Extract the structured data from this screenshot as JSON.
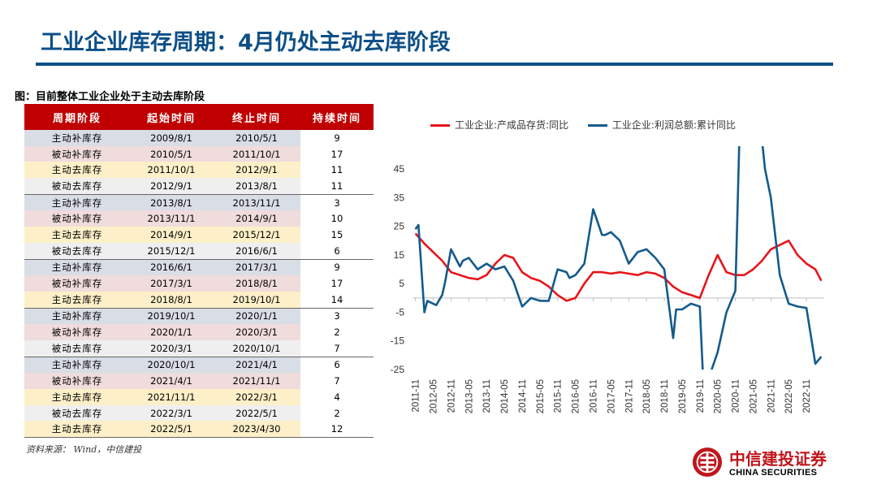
{
  "header": {
    "title": "工业企业库存周期：4月仍处主动去库阶段"
  },
  "figure_caption": "图：目前整体工业企业处于主动去库阶段",
  "table": {
    "headers": [
      "周期阶段",
      "起始时间",
      "终止时间",
      "持续时间"
    ],
    "rows": [
      {
        "stage": "主动补库存",
        "start": "2009/8/1",
        "end": "2010/5/1",
        "duration": "9"
      },
      {
        "stage": "被动补库存",
        "start": "2010/5/1",
        "end": "2011/10/1",
        "duration": "17"
      },
      {
        "stage": "主动去库存",
        "start": "2011/10/1",
        "end": "2012/9/1",
        "duration": "11"
      },
      {
        "stage": "被动去库存",
        "start": "2012/9/1",
        "end": "2013/8/1",
        "duration": "11"
      },
      {
        "stage": "主动补库存",
        "start": "2013/8/1",
        "end": "2013/11/1",
        "duration": "3"
      },
      {
        "stage": "被动补库存",
        "start": "2013/11/1",
        "end": "2014/9/1",
        "duration": "10"
      },
      {
        "stage": "主动去库存",
        "start": "2014/9/1",
        "end": "2015/12/1",
        "duration": "15"
      },
      {
        "stage": "被动去库存",
        "start": "2015/12/1",
        "end": "2016/6/1",
        "duration": "6"
      },
      {
        "stage": "主动补库存",
        "start": "2016/6/1",
        "end": "2017/3/1",
        "duration": "9"
      },
      {
        "stage": "被动补库存",
        "start": "2017/3/1",
        "end": "2018/8/1",
        "duration": "17"
      },
      {
        "stage": "主动去库存",
        "start": "2018/8/1",
        "end": "2019/10/1",
        "duration": "14"
      },
      {
        "stage": "主动补库存",
        "start": "2019/10/1",
        "end": "2020/1/1",
        "duration": "3"
      },
      {
        "stage": "被动补库存",
        "start": "2020/1/1",
        "end": "2020/3/1",
        "duration": "2"
      },
      {
        "stage": "被动去库存",
        "start": "2020/3/1",
        "end": "2020/10/1",
        "duration": "7"
      },
      {
        "stage": "主动补库存",
        "start": "2020/10/1",
        "end": "2021/4/1",
        "duration": "6"
      },
      {
        "stage": "被动补库存",
        "start": "2021/4/1",
        "end": "2021/11/1",
        "duration": "7"
      },
      {
        "stage": "主动去库存",
        "start": "2021/11/1",
        "end": "2022/3/1",
        "duration": "4"
      },
      {
        "stage": "被动去库存",
        "start": "2022/3/1",
        "end": "2022/5/1",
        "duration": "2"
      },
      {
        "stage": "主动去库存",
        "start": "2022/5/1",
        "end": "2023/4/30",
        "duration": "12"
      }
    ]
  },
  "source": "资料来源： Wind，中信建投",
  "logo": {
    "name_cn": "中信建投证券",
    "name_en": "CHINA SECURITIES"
  },
  "colors": {
    "title_blue": "#0d4f87",
    "header_red": "#c00000",
    "series_red": "#e8141b",
    "series_blue": "#145a8c"
  },
  "chart_data": {
    "type": "line",
    "series": [
      {
        "name": "工业企业:产成品存货:同比",
        "color": "#e8141b",
        "x": [
          "2011-11",
          "2012-02",
          "2012-05",
          "2012-08",
          "2012-11",
          "2013-02",
          "2013-05",
          "2013-08",
          "2013-11",
          "2014-02",
          "2014-05",
          "2014-08",
          "2014-11",
          "2015-02",
          "2015-05",
          "2015-08",
          "2015-11",
          "2016-02",
          "2016-05",
          "2016-08",
          "2016-11",
          "2017-02",
          "2017-05",
          "2017-08",
          "2017-11",
          "2018-02",
          "2018-05",
          "2018-08",
          "2018-11",
          "2019-02",
          "2019-05",
          "2019-08",
          "2019-11",
          "2020-02",
          "2020-05",
          "2020-08",
          "2020-11",
          "2021-02",
          "2021-05",
          "2021-08",
          "2021-11",
          "2022-02",
          "2022-05",
          "2022-08",
          "2022-11",
          "2023-02",
          "2023-04"
        ],
        "values": [
          22.5,
          19,
          16,
          13,
          9,
          8,
          7,
          6.5,
          8,
          12,
          15,
          14,
          9,
          7,
          6,
          4,
          1,
          -1,
          0,
          5,
          9,
          9,
          8.5,
          9,
          8.5,
          8,
          9,
          8.5,
          7,
          4,
          2,
          1,
          0,
          8,
          15,
          9,
          8,
          8,
          10,
          13,
          17,
          18.5,
          20,
          15,
          12,
          10,
          6
        ]
      },
      {
        "name": "工业企业:利润总额:累计同比",
        "color": "#145a8c",
        "x": [
          "2011-11",
          "2011-12",
          "2012-02",
          "2012-03",
          "2012-05",
          "2012-06",
          "2012-08",
          "2012-09",
          "2012-11",
          "2013-02",
          "2013-03",
          "2013-05",
          "2013-08",
          "2013-11",
          "2014-02",
          "2014-05",
          "2014-08",
          "2014-11",
          "2015-02",
          "2015-05",
          "2015-08",
          "2015-11",
          "2016-02",
          "2016-03",
          "2016-05",
          "2016-08",
          "2016-11",
          "2017-02",
          "2017-03",
          "2017-05",
          "2017-08",
          "2017-11",
          "2018-02",
          "2018-05",
          "2018-08",
          "2018-11",
          "2019-02",
          "2019-03",
          "2019-05",
          "2019-08",
          "2019-11",
          "2019-12",
          "2020-02",
          "2020-03",
          "2020-05",
          "2020-08",
          "2020-11",
          "2021-02",
          "2021-05",
          "2021-08",
          "2021-09",
          "2021-11",
          "2022-02",
          "2022-05",
          "2022-08",
          "2022-11",
          "2023-02",
          "2023-04"
        ],
        "values": [
          24,
          25.5,
          -5,
          -1,
          -2,
          -2.5,
          1,
          5.5,
          17,
          11,
          13,
          14,
          10,
          12,
          10,
          11,
          6,
          -3,
          0,
          -1,
          -1,
          10,
          9,
          7,
          8,
          12,
          31,
          22,
          22,
          23,
          20,
          12,
          16,
          17,
          14,
          10,
          -14,
          -4,
          -4,
          -2,
          -3,
          -26,
          -38,
          -25,
          -19,
          -5,
          2.5,
          120,
          83,
          55,
          45,
          35,
          8,
          -2,
          -3,
          -3.5,
          -23,
          -20.5
        ]
      }
    ],
    "x_ticks": [
      "2011-11",
      "2012-05",
      "2012-11",
      "2013-05",
      "2013-11",
      "2014-05",
      "2014-11",
      "2015-05",
      "2015-11",
      "2016-05",
      "2016-11",
      "2017-05",
      "2017-11",
      "2018-05",
      "2018-11",
      "2019-05",
      "2019-11",
      "2020-05",
      "2020-11",
      "2021-05",
      "2021-11",
      "2022-05",
      "2022-11"
    ],
    "y_ticks": [
      45,
      35,
      25,
      15,
      5,
      -5,
      -15,
      -25
    ],
    "ylim": [
      -25,
      53
    ],
    "xlim": [
      "2011-10",
      "2023-05"
    ],
    "grid": false,
    "legend_position": "top"
  }
}
